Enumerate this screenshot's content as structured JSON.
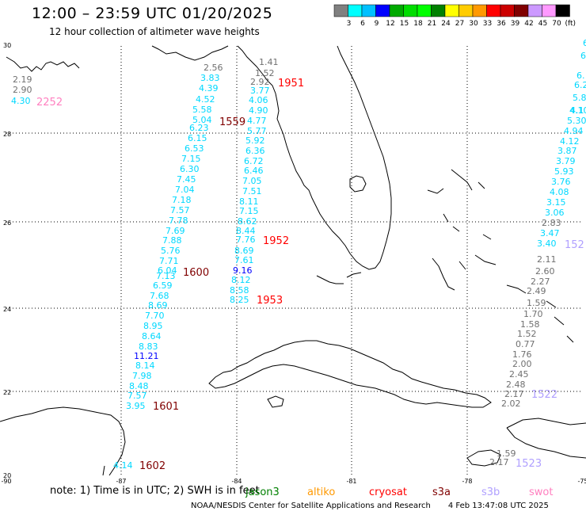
{
  "header": {
    "title": "12:00 – 23:59 UTC 01/20/2025",
    "subtitle": "12 hour collection of altimeter wave heights"
  },
  "legend": {
    "unit_label": "(ft)",
    "bins": [
      {
        "label": "",
        "color": "#808080"
      },
      {
        "label": "3",
        "color": "#00ffff"
      },
      {
        "label": "6",
        "color": "#00c0ff"
      },
      {
        "label": "9",
        "color": "#0000ff"
      },
      {
        "label": "12",
        "color": "#00aa00"
      },
      {
        "label": "15",
        "color": "#00dd00"
      },
      {
        "label": "18",
        "color": "#00ff00"
      },
      {
        "label": "21",
        "color": "#008000"
      },
      {
        "label": "24",
        "color": "#ffff00"
      },
      {
        "label": "27",
        "color": "#ffcc00"
      },
      {
        "label": "30",
        "color": "#ff9900"
      },
      {
        "label": "33",
        "color": "#ff0000"
      },
      {
        "label": "36",
        "color": "#cc0000"
      },
      {
        "label": "39",
        "color": "#800000"
      },
      {
        "label": "42",
        "color": "#cc99ff"
      },
      {
        "label": "45",
        "color": "#ff99ff"
      },
      {
        "label": "70",
        "color": "#000000"
      }
    ]
  },
  "axes": {
    "lon_labels": [
      "-90",
      "-87",
      "-84",
      "-81",
      "-78",
      "-75"
    ],
    "lat_labels": [
      "30",
      "28",
      "26",
      "24",
      "22",
      "20"
    ]
  },
  "colors": {
    "land_outline": "#000000",
    "grid": "#000000",
    "gray": "#707070",
    "light_blue": "#00c0ff",
    "dark_blue": "#0000ff",
    "cyan": "#00d8ff",
    "red": "#ff0000",
    "dark_red": "#800000",
    "pink": "#ff80c0",
    "lavender": "#b0a0ff"
  },
  "tracks": [
    {
      "id": "gulf-west-upper",
      "values": [
        {
          "v": "2.19",
          "c": "gray"
        },
        {
          "v": "2.90",
          "c": "gray"
        },
        {
          "v": "4.30",
          "c": "cyan"
        }
      ]
    },
    {
      "id": "gulf-middle",
      "values": [
        {
          "v": "2.56",
          "c": "gray"
        },
        {
          "v": "3.83",
          "c": "cyan"
        },
        {
          "v": "4.39",
          "c": "cyan"
        },
        {
          "v": "4.52",
          "c": "cyan"
        },
        {
          "v": "5.58",
          "c": "cyan"
        },
        {
          "v": "5.04",
          "c": "cyan"
        },
        {
          "v": "6.23",
          "c": "cyan"
        },
        {
          "v": "6.15",
          "c": "cyan"
        },
        {
          "v": "6.53",
          "c": "cyan"
        },
        {
          "v": "7.15",
          "c": "cyan"
        },
        {
          "v": "6.30",
          "c": "cyan"
        },
        {
          "v": "7.45",
          "c": "cyan"
        },
        {
          "v": "7.04",
          "c": "cyan"
        },
        {
          "v": "7.18",
          "c": "cyan"
        },
        {
          "v": "7.57",
          "c": "cyan"
        },
        {
          "v": "7.78",
          "c": "cyan"
        },
        {
          "v": "7.69",
          "c": "cyan"
        },
        {
          "v": "7.88",
          "c": "cyan"
        },
        {
          "v": "5.76",
          "c": "cyan"
        },
        {
          "v": "7.71",
          "c": "cyan"
        },
        {
          "v": "6.04",
          "c": "cyan"
        },
        {
          "v": "7.13",
          "c": "cyan"
        },
        {
          "v": "6.59",
          "c": "cyan"
        },
        {
          "v": "7.68",
          "c": "cyan"
        },
        {
          "v": "8.69",
          "c": "cyan"
        },
        {
          "v": "7.70",
          "c": "cyan"
        },
        {
          "v": "8.95",
          "c": "cyan"
        },
        {
          "v": "8.64",
          "c": "cyan"
        },
        {
          "v": "8.83",
          "c": "cyan"
        },
        {
          "v": "11.21",
          "c": "dark_blue"
        },
        {
          "v": "8.14",
          "c": "cyan"
        },
        {
          "v": "7.98",
          "c": "cyan"
        },
        {
          "v": "8.48",
          "c": "cyan"
        },
        {
          "v": "7.57",
          "c": "cyan"
        },
        {
          "v": "3.95",
          "c": "cyan"
        }
      ]
    },
    {
      "id": "gulf-east",
      "values": [
        {
          "v": "1.41",
          "c": "gray"
        },
        {
          "v": "1.52",
          "c": "gray"
        },
        {
          "v": "2.92",
          "c": "gray"
        },
        {
          "v": "3.77",
          "c": "cyan"
        },
        {
          "v": "4.06",
          "c": "cyan"
        },
        {
          "v": "4.90",
          "c": "cyan"
        },
        {
          "v": "4.77",
          "c": "cyan"
        },
        {
          "v": "5.77",
          "c": "cyan"
        },
        {
          "v": "5.92",
          "c": "cyan"
        },
        {
          "v": "6.36",
          "c": "cyan"
        },
        {
          "v": "6.72",
          "c": "cyan"
        },
        {
          "v": "6.46",
          "c": "cyan"
        },
        {
          "v": "7.05",
          "c": "cyan"
        },
        {
          "v": "7.51",
          "c": "cyan"
        },
        {
          "v": "8.11",
          "c": "cyan"
        },
        {
          "v": "7.15",
          "c": "cyan"
        },
        {
          "v": "8.62",
          "c": "cyan"
        },
        {
          "v": "8.44",
          "c": "cyan"
        },
        {
          "v": "7.76",
          "c": "cyan"
        },
        {
          "v": "8.69",
          "c": "cyan"
        },
        {
          "v": "7.61",
          "c": "cyan"
        },
        {
          "v": "9.16",
          "c": "dark_blue"
        },
        {
          "v": "8.12",
          "c": "cyan"
        },
        {
          "v": "8.58",
          "c": "cyan"
        },
        {
          "v": "8.25",
          "c": "cyan"
        }
      ]
    },
    {
      "id": "atlantic-east",
      "values": [
        {
          "v": "6.",
          "c": "cyan"
        },
        {
          "v": "6.",
          "c": "cyan"
        },
        {
          "v": "6.",
          "c": "cyan"
        },
        {
          "v": "6.2",
          "c": "cyan"
        },
        {
          "v": "5.8",
          "c": "cyan"
        },
        {
          "v": "4.1",
          "c": "cyan"
        },
        {
          "v": "4.10",
          "c": "cyan"
        },
        {
          "v": "5.30",
          "c": "cyan"
        },
        {
          "v": "4.94",
          "c": "cyan"
        },
        {
          "v": "4.12",
          "c": "cyan"
        },
        {
          "v": "3.87",
          "c": "cyan"
        },
        {
          "v": "3.79",
          "c": "cyan"
        },
        {
          "v": "5.93",
          "c": "cyan"
        },
        {
          "v": "3.76",
          "c": "cyan"
        },
        {
          "v": "4.08",
          "c": "cyan"
        },
        {
          "v": "3.15",
          "c": "cyan"
        },
        {
          "v": "3.06",
          "c": "cyan"
        },
        {
          "v": "2.83",
          "c": "gray"
        },
        {
          "v": "3.47",
          "c": "cyan"
        },
        {
          "v": "3.40",
          "c": "cyan"
        }
      ]
    },
    {
      "id": "bahamas-cuba",
      "values": [
        {
          "v": "2.11",
          "c": "gray"
        },
        {
          "v": "2.60",
          "c": "gray"
        },
        {
          "v": "2.27",
          "c": "gray"
        },
        {
          "v": "2.49",
          "c": "gray"
        },
        {
          "v": "1.59",
          "c": "gray"
        },
        {
          "v": "1.70",
          "c": "gray"
        },
        {
          "v": "1.58",
          "c": "gray"
        },
        {
          "v": "1.52",
          "c": "gray"
        },
        {
          "v": "0.77",
          "c": "gray"
        },
        {
          "v": "1.76",
          "c": "gray"
        },
        {
          "v": "2.00",
          "c": "gray"
        },
        {
          "v": "2.45",
          "c": "gray"
        },
        {
          "v": "2.48",
          "c": "gray"
        },
        {
          "v": "2.17",
          "c": "gray"
        },
        {
          "v": "2.02",
          "c": "gray"
        },
        {
          "v": "1.59",
          "c": "gray"
        },
        {
          "v": "2.17",
          "c": "gray"
        }
      ]
    },
    {
      "id": "caribbean-sw",
      "values": [
        {
          "v": "4.14",
          "c": "cyan"
        }
      ]
    }
  ],
  "time_labels": [
    {
      "v": "2252",
      "c": "pink"
    },
    {
      "v": "1559",
      "c": "dark_red"
    },
    {
      "v": "1951",
      "c": "red"
    },
    {
      "v": "1952",
      "c": "red"
    },
    {
      "v": "1600",
      "c": "dark_red"
    },
    {
      "v": "1953",
      "c": "red"
    },
    {
      "v": "1601",
      "c": "dark_red"
    },
    {
      "v": "1602",
      "c": "dark_red"
    },
    {
      "v": "152",
      "c": "lavender"
    },
    {
      "v": "1522",
      "c": "lavender"
    },
    {
      "v": "1523",
      "c": "lavender"
    }
  ],
  "note": {
    "text": "note: 1) Time is in UTC; 2) SWH is in feet"
  },
  "missions": [
    {
      "name": "jason3",
      "color": "#008000"
    },
    {
      "name": "altiko",
      "color": "#ff9900"
    },
    {
      "name": "cryosat",
      "color": "#ff0000"
    },
    {
      "name": "s3a",
      "color": "#800000"
    },
    {
      "name": "s3b",
      "color": "#b0a0ff"
    },
    {
      "name": "swot",
      "color": "#ff80c0"
    }
  ],
  "footer": {
    "credit": "NOAA/NESDIS Center for Satellite Applications and Research",
    "timestamp": "4 Feb 13:47:08 UTC 2025"
  }
}
